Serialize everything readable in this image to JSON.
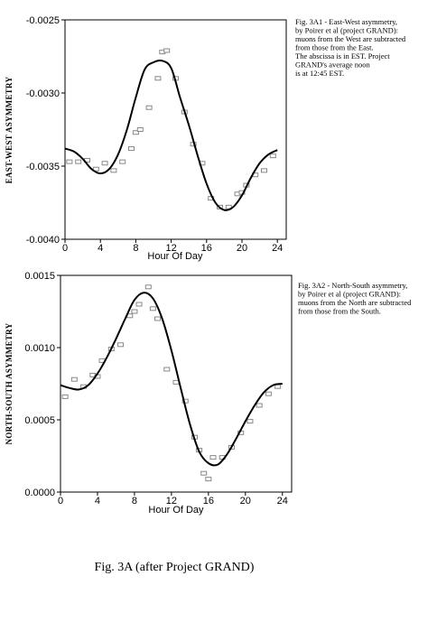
{
  "caption": "Fig. 3A (after Project GRAND)",
  "chart_data": [
    {
      "type": "scatter",
      "title": "",
      "xlabel": "Hour Of Day",
      "ylabel": "EAST-WEST ASYMMETRY",
      "xlim": [
        0,
        25
      ],
      "ylim": [
        -0.004,
        -0.0025
      ],
      "xticks": [
        "0",
        "4",
        "8",
        "12",
        "16",
        "20",
        "24"
      ],
      "yticks": [
        "-0.0025",
        "-0.0030",
        "-0.0035",
        "-0.0040"
      ],
      "note": [
        "Fig. 3A1 - East-West asymmetry,",
        "by Poirer et al (project GRAND):",
        "muons from the West are subtracted",
        "from those from the East.",
        "The abscissa is in EST. Project",
        "GRAND's average noon",
        "is at 12:45 EST."
      ],
      "series": [
        {
          "x": [
            0.5,
            1.5,
            2.5,
            3.5,
            4.5,
            5.5,
            6.5,
            7.5,
            8.0,
            8.5,
            9.5,
            10.5,
            11.0,
            11.5,
            12.5,
            13.5,
            14.5,
            15.5,
            16.5,
            17.5,
            18.5,
            19.5,
            20.0,
            20.5,
            21.5,
            22.5,
            23.5
          ],
          "y": [
            -0.00347,
            -0.00347,
            -0.00346,
            -0.00352,
            -0.00348,
            -0.00353,
            -0.00347,
            -0.00338,
            -0.00327,
            -0.00325,
            -0.0031,
            -0.0029,
            -0.00272,
            -0.00271,
            -0.0029,
            -0.00313,
            -0.00335,
            -0.00348,
            -0.00372,
            -0.00378,
            -0.00378,
            -0.00369,
            -0.00368,
            -0.00363,
            -0.00356,
            -0.00353,
            -0.00343
          ]
        },
        {
          "x": [
            0,
            1,
            2,
            3,
            4,
            5,
            6,
            7,
            8,
            9,
            10,
            11,
            12,
            13,
            14,
            15,
            16,
            17,
            18,
            19,
            20,
            21,
            22,
            23,
            24
          ],
          "y": [
            -0.00338,
            -0.0034,
            -0.00345,
            -0.00352,
            -0.00355,
            -0.00352,
            -0.00342,
            -0.00325,
            -0.00303,
            -0.00284,
            -0.00279,
            -0.00278,
            -0.00283,
            -0.00303,
            -0.00322,
            -0.00343,
            -0.00362,
            -0.00375,
            -0.0038,
            -0.00378,
            -0.0037,
            -0.00358,
            -0.00348,
            -0.00342,
            -0.00339
          ]
        }
      ]
    },
    {
      "type": "scatter",
      "title": "",
      "xlabel": "Hour Of Day",
      "ylabel": "NORTH-SOUTH ASYMMETRY",
      "xlim": [
        0,
        25
      ],
      "ylim": [
        0.0,
        0.0015
      ],
      "xticks": [
        "0",
        "4",
        "8",
        "12",
        "16",
        "20",
        "24"
      ],
      "yticks": [
        "0.0015",
        "0.0010",
        "0.0005",
        "0.0000"
      ],
      "note": [
        "Fig. 3A2 - North-South asymmetry,",
        "by Poirer et al (project GRAND):",
        "muons from the North are subtracted",
        "from those from the South."
      ],
      "series": [
        {
          "x": [
            0.5,
            1.5,
            2.5,
            3.5,
            4.0,
            4.5,
            5.5,
            6.5,
            7.5,
            8.0,
            8.5,
            9.5,
            10.0,
            10.5,
            11.5,
            12.5,
            13.5,
            14.5,
            15.0,
            15.5,
            16.0,
            16.5,
            17.5,
            18.5,
            19.5,
            20.5,
            21.5,
            22.5,
            23.5
          ],
          "y": [
            0.00066,
            0.00078,
            0.00073,
            0.00081,
            0.0008,
            0.00091,
            0.00099,
            0.00102,
            0.00122,
            0.00125,
            0.0013,
            0.00142,
            0.00127,
            0.0012,
            0.00085,
            0.00076,
            0.00063,
            0.00038,
            0.00029,
            0.00013,
            9e-05,
            0.00024,
            0.00024,
            0.00031,
            0.00041,
            0.00049,
            0.0006,
            0.00068,
            0.00073
          ]
        },
        {
          "x": [
            0,
            1,
            2,
            3,
            4,
            5,
            6,
            7,
            8,
            9,
            10,
            11,
            12,
            13,
            14,
            15,
            16,
            17,
            18,
            19,
            20,
            21,
            22,
            23,
            24
          ],
          "y": [
            0.00074,
            0.00072,
            0.00071,
            0.00074,
            0.00082,
            0.00093,
            0.00106,
            0.0012,
            0.00133,
            0.00138,
            0.00134,
            0.0012,
            0.00098,
            0.00072,
            0.00047,
            0.00028,
            0.0002,
            0.00019,
            0.00026,
            0.00037,
            0.00049,
            0.0006,
            0.00069,
            0.00074,
            0.00075
          ]
        }
      ]
    }
  ]
}
